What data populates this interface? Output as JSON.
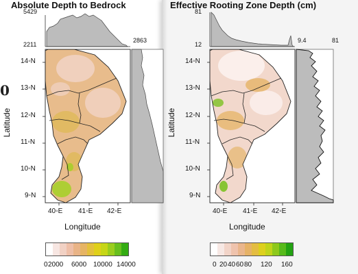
{
  "left_figure": {
    "title": "Absolute Depth to Bedrock",
    "top_hist_max": "5429",
    "top_hist_min": "2211",
    "side_hist_label": "2863",
    "lat_ticks": [
      "14◦N",
      "13◦N",
      "12◦N",
      "11◦N",
      "10◦N",
      "9◦N"
    ],
    "lon_ticks": [
      "40◦E",
      "41◦E",
      "42◦E"
    ],
    "xlabel": "Longitude",
    "ylabel": "Latitude",
    "legend_ticks": [
      "0",
      "2000",
      "6000",
      "10000",
      "14000"
    ],
    "legend_colors": [
      "#ffffff",
      "#f7e6e2",
      "#f1d1c4",
      "#eebfa8",
      "#e9b487",
      "#e6b464",
      "#e4c03c",
      "#dfd01a",
      "#c6d617",
      "#9acd1e",
      "#68bf1e",
      "#34ac13"
    ],
    "cut_digit": "0"
  },
  "right_figure": {
    "title": "Effective Rooting Zone Depth (cm)",
    "top_hist_max": "81",
    "top_hist_min": "12",
    "side_hist_min": "9.4",
    "side_hist_max": "81",
    "lat_ticks": [
      "14◦N",
      "13◦N",
      "12◦N",
      "11◦N",
      "10◦N",
      "9◦N"
    ],
    "lon_ticks": [
      "40◦E",
      "41◦E",
      "42◦E"
    ],
    "xlabel": "Longitude",
    "ylabel": "Latitude",
    "legend_ticks": [
      "0",
      "20",
      "40",
      "60",
      "80",
      "120",
      "160"
    ],
    "legend_colors": [
      "#ffffff",
      "#f7e8e4",
      "#f2d4c8",
      "#efc3ad",
      "#eab68c",
      "#e6b266",
      "#e4bd41",
      "#ddd01d",
      "#c0d41a",
      "#8ec91c",
      "#57ba1a",
      "#23a212"
    ]
  },
  "map_palette": {
    "left_base": "#e8bc8c",
    "left_light": "#f1d3c6",
    "left_ochre": "#dfba5c",
    "left_green": "#a7cf2a",
    "right_base": "#f2d8cc",
    "right_light": "#fbf0ec",
    "right_ochre": "#e6b66c",
    "right_green": "#7cc222"
  }
}
